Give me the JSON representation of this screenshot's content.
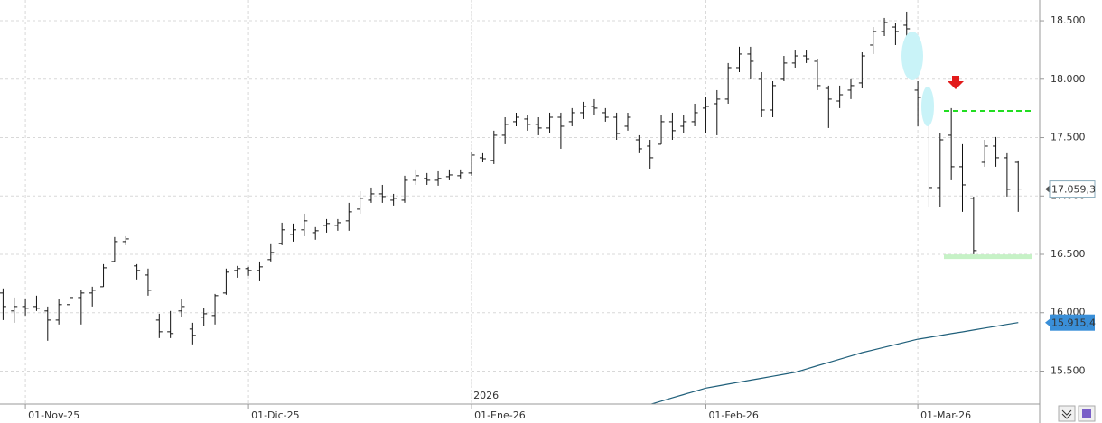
{
  "chart_data": {
    "type": "ohlc",
    "categories": [
      null,
      null,
      "01-Nov-25",
      null,
      null,
      null,
      null,
      null,
      null,
      null,
      null,
      null,
      null,
      null,
      null,
      null,
      null,
      null,
      null,
      null,
      null,
      null,
      "01-Dic-25",
      null,
      null,
      null,
      null,
      null,
      null,
      null,
      null,
      null,
      null,
      null,
      null,
      null,
      null,
      null,
      null,
      null,
      null,
      null,
      "01-Ene-26",
      null,
      null,
      null,
      null,
      null,
      null,
      null,
      null,
      null,
      null,
      null,
      null,
      null,
      null,
      null,
      null,
      null,
      null,
      null,
      null,
      "01-Feb-26",
      null,
      null,
      null,
      null,
      null,
      null,
      null,
      null,
      null,
      null,
      null,
      null,
      null,
      null,
      null,
      null,
      null,
      null,
      "01-Mar-26",
      null,
      null,
      null,
      null,
      null,
      null,
      null,
      null,
      null
    ],
    "open": [
      16169,
      16015,
      16053,
      16053,
      16015,
      15937,
      16069,
      16130,
      16169,
      16223,
      16439,
      16609,
      16401,
      16323,
      15937,
      15837,
      16015,
      15860,
      15961,
      15976,
      16169,
      16362,
      16378,
      16362,
      16455,
      16594,
      16671,
      16710,
      16686,
      16748,
      16748,
      16787,
      16887,
      16964,
      17018,
      16964,
      16964,
      17134,
      17150,
      17134,
      17165,
      17173,
      17196,
      17327,
      17304,
      17520,
      17636,
      17659,
      17613,
      17582,
      17674,
      17636,
      17713,
      17767,
      17713,
      17674,
      17597,
      17481,
      17427,
      17443,
      17636,
      17597,
      17636,
      17752,
      17790,
      17829,
      18099,
      18215,
      17999,
      17736,
      17999,
      18138,
      18199,
      18153,
      17921,
      17813,
      17906,
      17968,
      18292,
      18408,
      18446,
      18462,
      17906,
      17752,
      17072,
      17520,
      17250,
      16980,
      17288,
      17427,
      17327,
      17288
    ],
    "high": [
      16208,
      16130,
      16115,
      16146,
      16053,
      16115,
      16169,
      16192,
      16223,
      16416,
      16648,
      16655,
      16416,
      16378,
      15991,
      16015,
      16115,
      15914,
      16038,
      16161,
      16378,
      16401,
      16393,
      16439,
      16594,
      16771,
      16764,
      16848,
      16733,
      16802,
      16802,
      16941,
      17041,
      17072,
      17095,
      17018,
      17173,
      17227,
      17196,
      17211,
      17227,
      17227,
      17381,
      17366,
      17559,
      17674,
      17713,
      17690,
      17674,
      17713,
      17713,
      17752,
      17806,
      17829,
      17752,
      17713,
      17713,
      17520,
      17481,
      17690,
      17713,
      17690,
      17790,
      17844,
      17906,
      18138,
      18277,
      18277,
      18060,
      17983,
      18199,
      18253,
      18253,
      18176,
      17945,
      17945,
      17999,
      18230,
      18446,
      18524,
      18485,
      18578,
      17983,
      17844,
      17535,
      17752,
      17443,
      16995,
      17481,
      17505,
      17366,
      17304
    ],
    "low": [
      15937,
      15914,
      15976,
      16015,
      15760,
      15899,
      15976,
      15899,
      16053,
      16223,
      16439,
      16578,
      16285,
      16146,
      15783,
      15783,
      15961,
      15729,
      15883,
      15899,
      16154,
      16300,
      16316,
      16269,
      16439,
      16578,
      16609,
      16655,
      16625,
      16686,
      16702,
      16702,
      16848,
      16941,
      16941,
      16918,
      16941,
      17095,
      17095,
      17088,
      17134,
      17150,
      17173,
      17288,
      17273,
      17443,
      17597,
      17559,
      17520,
      17535,
      17404,
      17597,
      17659,
      17690,
      17636,
      17481,
      17559,
      17366,
      17234,
      17443,
      17481,
      17535,
      17597,
      17535,
      17520,
      17790,
      18060,
      17999,
      17674,
      17674,
      17983,
      18099,
      18138,
      17906,
      17582,
      17752,
      17829,
      17921,
      18215,
      18369,
      18292,
      18331,
      17597,
      16902,
      16902,
      17134,
      16864,
      16501,
      17250,
      17250,
      16995,
      16864
    ],
    "close": [
      16053,
      16053,
      16038,
      16038,
      15937,
      16069,
      16130,
      16169,
      16192,
      16385,
      16609,
      16632,
      16362,
      16192,
      15837,
      15822,
      16053,
      15806,
      15991,
      16146,
      16347,
      16378,
      16362,
      16393,
      16516,
      16710,
      16710,
      16787,
      16702,
      16764,
      16771,
      16864,
      16980,
      17018,
      16995,
      16980,
      17134,
      17173,
      17134,
      17150,
      17180,
      17196,
      17350,
      17319,
      17520,
      17613,
      17674,
      17613,
      17582,
      17674,
      17597,
      17713,
      17767,
      17752,
      17674,
      17535,
      17674,
      17404,
      17327,
      17636,
      17559,
      17636,
      17713,
      17767,
      17829,
      18099,
      18215,
      18153,
      17736,
      17945,
      18138,
      18199,
      18176,
      17945,
      17829,
      17867,
      17945,
      18199,
      18408,
      18485,
      18408,
      18431,
      17844,
      17072,
      17481,
      17250,
      17095,
      16532,
      17427,
      17327,
      17057,
      17059.3
    ],
    "last_close_label": "17.059,3",
    "color": "#111111",
    "overlay": {
      "color": "#1f5f7a",
      "label_color": "#3a8fd8",
      "values": [
        null,
        null,
        null,
        null,
        null,
        null,
        null,
        null,
        null,
        null,
        null,
        null,
        null,
        null,
        null,
        null,
        null,
        null,
        null,
        null,
        null,
        null,
        null,
        null,
        null,
        null,
        null,
        null,
        null,
        null,
        null,
        null,
        null,
        null,
        null,
        null,
        null,
        null,
        null,
        null,
        null,
        null,
        null,
        null,
        null,
        null,
        null,
        null,
        null,
        null,
        null,
        null,
        null,
        null,
        null,
        null,
        null,
        null,
        15215,
        15243,
        15271,
        15299,
        15327,
        15355,
        15372,
        15389,
        15406,
        15423,
        15439,
        15456,
        15473,
        15490,
        15518,
        15546,
        15574,
        15602,
        15630,
        15658,
        15681,
        15704,
        15727,
        15750,
        15773,
        15789,
        15805,
        15821,
        15836,
        15852,
        15868,
        15884,
        15900,
        15915.4
      ],
      "last_label": "15.915,4"
    },
    "levels": [
      {
        "value": 17728,
        "color": "#22dd22",
        "dashed": true
      },
      {
        "value": 16480,
        "color": "#c6f2c6",
        "dashed": false
      }
    ],
    "year_label": "2026",
    "year_index": 42,
    "ylim": [
      15218,
      18678
    ],
    "yticks": [
      {
        "value": 15500,
        "label": "15.500"
      },
      {
        "value": 16000,
        "label": "16.000"
      },
      {
        "value": 16500,
        "label": "16.500"
      },
      {
        "value": 17000,
        "label": "17.000"
      },
      {
        "value": 17500,
        "label": "17.500"
      },
      {
        "value": 18000,
        "label": "18.000"
      },
      {
        "value": 18500,
        "label": "18.500"
      }
    ],
    "grid": true
  }
}
